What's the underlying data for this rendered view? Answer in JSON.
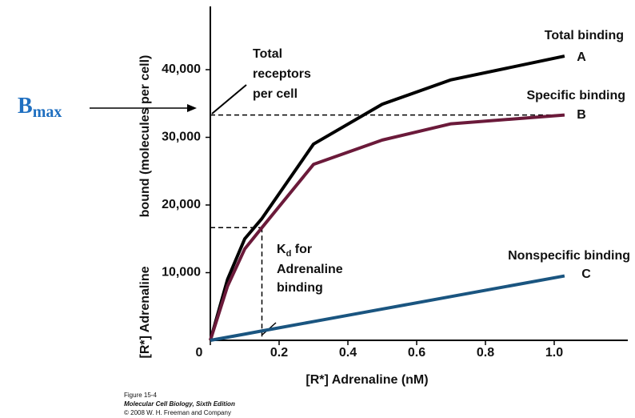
{
  "chart_data": {
    "type": "line",
    "x_label": "[R*] Adrenaline (nM)",
    "y_label": [
      "[R*] Adrenaline",
      "bound (molecules per cell)"
    ],
    "x": [
      0,
      0.05,
      0.1,
      0.15,
      0.3,
      0.5,
      0.7,
      1.03
    ],
    "series": [
      {
        "name": "Total binding",
        "letter": "A",
        "color": "#000000",
        "values": [
          0,
          9000,
          15000,
          18000,
          29000,
          34900,
          38500,
          42000
        ]
      },
      {
        "name": "Specific binding",
        "letter": "B",
        "color": "#6b1a3a",
        "values": [
          0,
          8000,
          13500,
          16650,
          26000,
          29600,
          32000,
          33300
        ]
      },
      {
        "name": "Nonspecific binding",
        "letter": "C",
        "color": "#1a5580",
        "values": [
          0,
          460,
          920,
          1390,
          2770,
          4620,
          6470,
          9520
        ]
      }
    ],
    "xlim": [
      0,
      1.2
    ],
    "ylim": [
      0,
      50000
    ],
    "xticks": [
      0,
      0.2,
      0.4,
      0.6,
      0.8,
      {
        "value": 1,
        "label": "1.0"
      }
    ],
    "yticks": [
      {
        "value": 10000,
        "label": "10,000"
      },
      {
        "value": 20000,
        "label": "20,000"
      },
      {
        "value": 30000,
        "label": "30,000"
      },
      {
        "value": 40000,
        "label": "40,000"
      }
    ],
    "reference": {
      "bmax": 33300,
      "kd": 0.15,
      "half_binding": 16650
    },
    "annotations": {
      "total_receptors": [
        "Total",
        "receptors",
        "per cell"
      ],
      "kd": [
        "K",
        "d",
        " for",
        "Adrenaline",
        "binding"
      ],
      "bmax": [
        "B",
        "max"
      ]
    },
    "caption": [
      "Figure 15-4",
      "Molecular Cell Biology, Sixth Edition",
      "© 2008 W. H. Freeman and Company"
    ]
  }
}
